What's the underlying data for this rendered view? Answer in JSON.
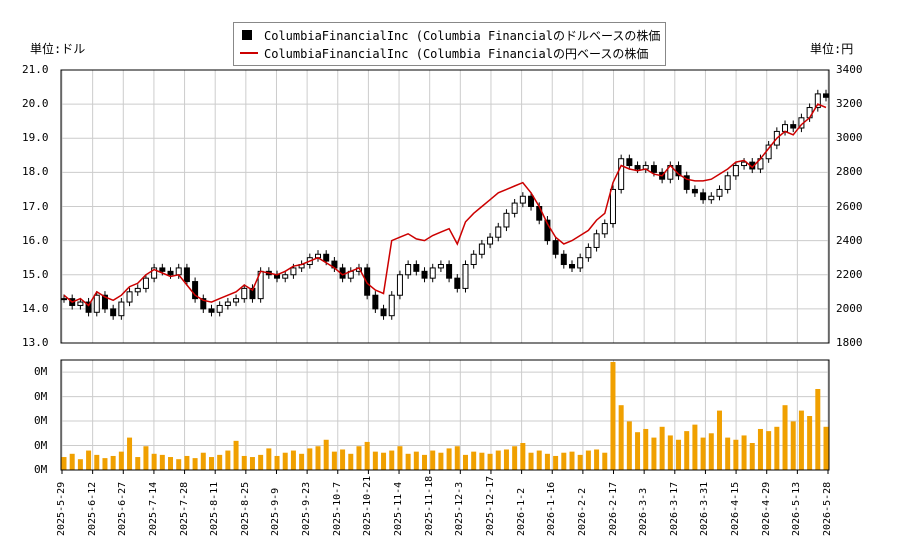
{
  "legend": {
    "items": [
      {
        "label": "ColumbiaFinancialInc (Columbia Financialのドルベースの株価",
        "color": "#000000",
        "kind": "candle"
      },
      {
        "label": "ColumbiaFinancialInc (Columbia Financialの円ベースの株価",
        "color": "#cc0000",
        "kind": "line"
      }
    ]
  },
  "units": {
    "left": "単位:ドル",
    "right": "単位:円"
  },
  "chart_data": {
    "type": "line",
    "y_left": {
      "lim": [
        13.0,
        21.0
      ],
      "ticks": [
        "13.0",
        "14.0",
        "15.0",
        "16.0",
        "17.0",
        "18.0",
        "19.0",
        "20.0",
        "21.0"
      ]
    },
    "y_right": {
      "lim": [
        1800,
        3400
      ],
      "ticks": [
        "1800",
        "2000",
        "2200",
        "2400",
        "2600",
        "2800",
        "3000",
        "3200",
        "3400"
      ]
    },
    "volume_axis": {
      "ticks": [
        "0M",
        "0M",
        "0M",
        "0M",
        "0M"
      ]
    },
    "x_tick_labels": [
      "2025-5-29",
      "2025-6-12",
      "2025-6-27",
      "2025-7-14",
      "2025-7-28",
      "2025-8-11",
      "2025-8-25",
      "2025-9-9",
      "2025-9-23",
      "2025-10-7",
      "2025-10-21",
      "2025-11-4",
      "2025-11-18",
      "2025-12-3",
      "2025-12-17",
      "2026-1-2",
      "2026-1-16",
      "2026-2-2",
      "2026-2-17",
      "2026-3-3",
      "2026-3-17",
      "2026-3-31",
      "2026-4-15",
      "2026-4-29",
      "2026-5-13",
      "2026-5-28"
    ],
    "series": [
      {
        "name": "ColumbiaFinancialInc (Columbia Financialのドルベースの株価",
        "axis": "left",
        "kind": "candlestick",
        "values": [
          14.3,
          14.1,
          14.2,
          13.9,
          14.4,
          14.0,
          13.8,
          14.2,
          14.5,
          14.6,
          14.9,
          15.2,
          15.1,
          15.0,
          15.2,
          14.8,
          14.3,
          14.0,
          13.9,
          14.1,
          14.2,
          14.3,
          14.6,
          14.3,
          15.1,
          15.0,
          14.9,
          15.0,
          15.2,
          15.3,
          15.5,
          15.6,
          15.4,
          15.2,
          14.9,
          15.1,
          15.2,
          14.4,
          14.0,
          13.8,
          14.4,
          15.0,
          15.3,
          15.1,
          14.9,
          15.2,
          15.3,
          14.9,
          14.6,
          15.3,
          15.6,
          15.9,
          16.1,
          16.4,
          16.8,
          17.1,
          17.3,
          17.0,
          16.6,
          16.0,
          15.6,
          15.3,
          15.2,
          15.5,
          15.8,
          16.2,
          16.5,
          17.5,
          18.4,
          18.2,
          18.1,
          18.2,
          18.0,
          17.8,
          18.2,
          17.9,
          17.5,
          17.4,
          17.2,
          17.3,
          17.5,
          17.9,
          18.2,
          18.3,
          18.1,
          18.4,
          18.8,
          19.2,
          19.4,
          19.3,
          19.6,
          19.9,
          20.3,
          20.2
        ]
      },
      {
        "name": "ColumbiaFinancialInc (Columbia Financialの円ベースの株価",
        "axis": "right",
        "kind": "line",
        "values": [
          2080,
          2040,
          2060,
          2020,
          2100,
          2070,
          2050,
          2080,
          2130,
          2150,
          2200,
          2230,
          2210,
          2190,
          2200,
          2140,
          2080,
          2050,
          2040,
          2060,
          2080,
          2100,
          2140,
          2110,
          2220,
          2210,
          2200,
          2220,
          2250,
          2260,
          2280,
          2300,
          2270,
          2240,
          2200,
          2220,
          2240,
          2150,
          2110,
          2090,
          2400,
          2420,
          2440,
          2410,
          2400,
          2430,
          2450,
          2470,
          2380,
          2510,
          2560,
          2600,
          2640,
          2680,
          2700,
          2720,
          2740,
          2680,
          2600,
          2500,
          2420,
          2380,
          2400,
          2430,
          2460,
          2520,
          2560,
          2740,
          2840,
          2820,
          2810,
          2820,
          2790,
          2780,
          2840,
          2790,
          2760,
          2750,
          2750,
          2760,
          2790,
          2820,
          2860,
          2870,
          2830,
          2880,
          2940,
          3000,
          3040,
          3020,
          3080,
          3120,
          3200,
          3180
        ]
      },
      {
        "name": "",
        "axis": "volume",
        "kind": "bar",
        "values": [
          0.12,
          0.15,
          0.1,
          0.18,
          0.14,
          0.11,
          0.13,
          0.17,
          0.3,
          0.12,
          0.22,
          0.15,
          0.14,
          0.12,
          0.1,
          0.13,
          0.11,
          0.16,
          0.12,
          0.14,
          0.18,
          0.27,
          0.13,
          0.12,
          0.14,
          0.2,
          0.13,
          0.16,
          0.18,
          0.15,
          0.2,
          0.22,
          0.28,
          0.17,
          0.19,
          0.15,
          0.22,
          0.26,
          0.17,
          0.16,
          0.18,
          0.22,
          0.15,
          0.17,
          0.14,
          0.18,
          0.16,
          0.2,
          0.22,
          0.14,
          0.17,
          0.16,
          0.15,
          0.18,
          0.19,
          0.22,
          0.25,
          0.16,
          0.18,
          0.15,
          0.13,
          0.16,
          0.17,
          0.14,
          0.18,
          0.19,
          0.16,
          1.0,
          0.6,
          0.45,
          0.35,
          0.38,
          0.3,
          0.4,
          0.32,
          0.28,
          0.36,
          0.42,
          0.3,
          0.34,
          0.55,
          0.3,
          0.28,
          0.32,
          0.25,
          0.38,
          0.36,
          0.4,
          0.6,
          0.45,
          0.55,
          0.5,
          0.75,
          0.4
        ]
      }
    ]
  }
}
